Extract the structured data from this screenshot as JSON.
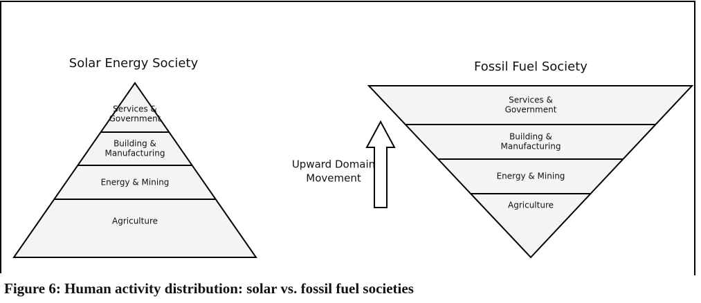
{
  "left": {
    "title": "Solar Energy Society",
    "layers": [
      [
        "Services &",
        "Government"
      ],
      [
        "Building &",
        "Manufacturing"
      ],
      [
        "Energy & Mining"
      ],
      [
        "Agriculture"
      ]
    ]
  },
  "right": {
    "title": "Fossil Fuel Society",
    "layers": [
      [
        "Services &",
        "Government"
      ],
      [
        "Building &",
        "Manufacturing"
      ],
      [
        "Energy & Mining"
      ],
      [
        "Agriculture"
      ]
    ]
  },
  "arrow": {
    "label": [
      "Upward Domain",
      "Movement"
    ]
  },
  "caption": "Figure 6: Human activity distribution: solar vs. fossil fuel societies"
}
